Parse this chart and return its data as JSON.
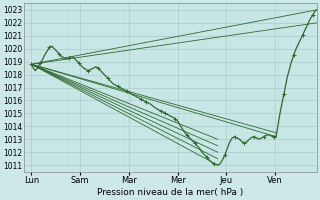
{
  "bg_color": "#cce8e8",
  "grid_major_color": "#aacccc",
  "grid_minor_color": "#bbdddd",
  "line_color": "#2d6a2d",
  "xlabel": "Pression niveau de la mer( hPa )",
  "ylim": [
    1010.5,
    1023.5
  ],
  "yticks": [
    1011,
    1012,
    1013,
    1014,
    1015,
    1016,
    1017,
    1018,
    1019,
    1020,
    1021,
    1022,
    1023
  ],
  "xtick_labels": [
    "Lun",
    "Sam",
    "Mar",
    "Mer",
    "Jeu",
    "Ven"
  ],
  "xtick_positions": [
    0,
    1,
    2,
    3,
    4,
    5
  ],
  "xlim": [
    -0.15,
    5.85
  ],
  "detailed_line": [
    [
      0.0,
      1018.8
    ],
    [
      0.04,
      1018.5
    ],
    [
      0.08,
      1018.3
    ],
    [
      0.12,
      1018.5
    ],
    [
      0.18,
      1018.9
    ],
    [
      0.22,
      1019.1
    ],
    [
      0.27,
      1019.5
    ],
    [
      0.32,
      1019.8
    ],
    [
      0.37,
      1020.1
    ],
    [
      0.42,
      1020.2
    ],
    [
      0.47,
      1020.0
    ],
    [
      0.52,
      1019.8
    ],
    [
      0.57,
      1019.6
    ],
    [
      0.62,
      1019.4
    ],
    [
      0.67,
      1019.3
    ],
    [
      0.72,
      1019.2
    ],
    [
      0.77,
      1019.3
    ],
    [
      0.82,
      1019.4
    ],
    [
      0.87,
      1019.3
    ],
    [
      0.92,
      1019.1
    ],
    [
      0.97,
      1018.9
    ],
    [
      1.02,
      1018.7
    ],
    [
      1.07,
      1018.5
    ],
    [
      1.12,
      1018.4
    ],
    [
      1.17,
      1018.3
    ],
    [
      1.22,
      1018.4
    ],
    [
      1.27,
      1018.5
    ],
    [
      1.32,
      1018.6
    ],
    [
      1.37,
      1018.5
    ],
    [
      1.42,
      1018.3
    ],
    [
      1.47,
      1018.1
    ],
    [
      1.52,
      1017.9
    ],
    [
      1.57,
      1017.7
    ],
    [
      1.62,
      1017.5
    ],
    [
      1.67,
      1017.3
    ],
    [
      1.72,
      1017.2
    ],
    [
      1.77,
      1017.1
    ],
    [
      1.82,
      1017.0
    ],
    [
      1.87,
      1016.9
    ],
    [
      1.92,
      1016.8
    ],
    [
      1.97,
      1016.7
    ],
    [
      2.05,
      1016.5
    ],
    [
      2.15,
      1016.3
    ],
    [
      2.25,
      1016.1
    ],
    [
      2.35,
      1015.9
    ],
    [
      2.45,
      1015.7
    ],
    [
      2.55,
      1015.4
    ],
    [
      2.65,
      1015.2
    ],
    [
      2.75,
      1015.0
    ],
    [
      2.85,
      1014.8
    ],
    [
      2.95,
      1014.6
    ],
    [
      3.0,
      1014.4
    ],
    [
      3.05,
      1014.1
    ],
    [
      3.1,
      1013.8
    ],
    [
      3.15,
      1013.5
    ],
    [
      3.2,
      1013.3
    ],
    [
      3.25,
      1013.1
    ],
    [
      3.3,
      1012.9
    ],
    [
      3.35,
      1012.7
    ],
    [
      3.4,
      1012.5
    ],
    [
      3.45,
      1012.3
    ],
    [
      3.5,
      1012.0
    ],
    [
      3.55,
      1011.8
    ],
    [
      3.6,
      1011.6
    ],
    [
      3.65,
      1011.4
    ],
    [
      3.7,
      1011.2
    ],
    [
      3.75,
      1011.1
    ],
    [
      3.8,
      1011.05
    ],
    [
      3.82,
      1011.0
    ],
    [
      3.87,
      1011.1
    ],
    [
      3.92,
      1011.4
    ],
    [
      3.97,
      1011.8
    ],
    [
      4.02,
      1012.3
    ],
    [
      4.07,
      1012.8
    ],
    [
      4.12,
      1013.1
    ],
    [
      4.17,
      1013.2
    ],
    [
      4.22,
      1013.1
    ],
    [
      4.27,
      1013.0
    ],
    [
      4.32,
      1012.8
    ],
    [
      4.37,
      1012.7
    ],
    [
      4.42,
      1012.8
    ],
    [
      4.47,
      1013.0
    ],
    [
      4.52,
      1013.15
    ],
    [
      4.57,
      1013.2
    ],
    [
      4.62,
      1013.1
    ],
    [
      4.67,
      1013.0
    ],
    [
      4.72,
      1013.1
    ],
    [
      4.77,
      1013.2
    ],
    [
      4.82,
      1013.3
    ],
    [
      4.87,
      1013.35
    ],
    [
      4.92,
      1013.25
    ],
    [
      4.97,
      1013.2
    ],
    [
      5.02,
      1013.2
    ],
    [
      5.1,
      1015.0
    ],
    [
      5.18,
      1016.5
    ],
    [
      5.25,
      1017.8
    ],
    [
      5.32,
      1018.8
    ],
    [
      5.38,
      1019.5
    ],
    [
      5.43,
      1020.0
    ],
    [
      5.48,
      1020.4
    ],
    [
      5.52,
      1020.7
    ],
    [
      5.57,
      1021.1
    ],
    [
      5.62,
      1021.5
    ],
    [
      5.67,
      1021.9
    ],
    [
      5.72,
      1022.3
    ],
    [
      5.77,
      1022.6
    ],
    [
      5.82,
      1022.9
    ],
    [
      5.85,
      1023.0
    ]
  ],
  "fan_lines": [
    [
      [
        0.0,
        1018.8
      ],
      [
        3.82,
        1011.0
      ]
    ],
    [
      [
        0.0,
        1018.8
      ],
      [
        3.82,
        1011.5
      ]
    ],
    [
      [
        0.0,
        1018.8
      ],
      [
        3.82,
        1012.0
      ]
    ],
    [
      [
        0.0,
        1018.8
      ],
      [
        3.82,
        1012.5
      ]
    ],
    [
      [
        0.0,
        1018.8
      ],
      [
        3.82,
        1013.0
      ]
    ],
    [
      [
        0.0,
        1018.8
      ],
      [
        5.02,
        1013.2
      ]
    ],
    [
      [
        0.0,
        1018.8
      ],
      [
        5.02,
        1013.5
      ]
    ],
    [
      [
        0.0,
        1018.8
      ],
      [
        5.85,
        1022.0
      ]
    ],
    [
      [
        0.0,
        1018.8
      ],
      [
        5.85,
        1023.0
      ]
    ]
  ],
  "marker_interval": 0.1
}
